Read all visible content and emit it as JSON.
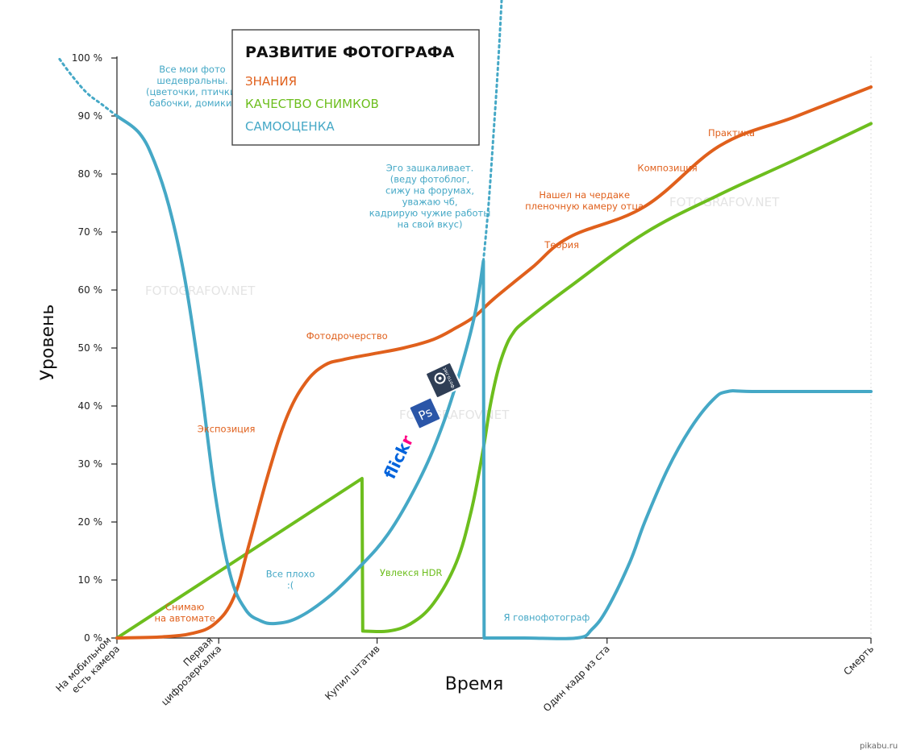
{
  "chart_data": {
    "type": "line",
    "title": "РАЗВИТИЕ ФОТОГРАФА",
    "xlabel": "Время",
    "ylabel": "Уровень",
    "ylim": [
      0,
      100
    ],
    "yticks": [
      "0 %",
      "10 %",
      "20 %",
      "30 %",
      "40 %",
      "50 %",
      "60 %",
      "70 %",
      "80 %",
      "90 %",
      "100 %"
    ],
    "xlim": [
      0,
      100
    ],
    "categories": [
      {
        "x": 0,
        "label": [
          "На мобильном",
          "есть камера"
        ]
      },
      {
        "x": 13.5,
        "label": [
          "Первая",
          "цифрозеркалка"
        ]
      },
      {
        "x": 34.5,
        "label": [
          "Купил штатив"
        ]
      },
      {
        "x": 65,
        "label": [
          "Один кадр из ста"
        ]
      },
      {
        "x": 100,
        "label": [
          "Смерть"
        ]
      }
    ],
    "grid": false,
    "legend": "top-left",
    "series": [
      {
        "name": "ЗНАНИЯ",
        "color": "#e0601c",
        "points": [
          [
            0,
            0
          ],
          [
            6,
            0.2
          ],
          [
            10,
            0.8
          ],
          [
            13,
            2.5
          ],
          [
            15.5,
            7
          ],
          [
            17.5,
            16
          ],
          [
            20,
            28
          ],
          [
            22.5,
            38
          ],
          [
            25,
            44
          ],
          [
            27.5,
            47
          ],
          [
            30,
            48
          ],
          [
            34,
            49
          ],
          [
            38,
            50
          ],
          [
            42,
            51.5
          ],
          [
            45,
            53.5
          ],
          [
            47.5,
            55.5
          ],
          [
            50,
            58.5
          ],
          [
            55,
            63.8
          ],
          [
            60,
            69.1
          ],
          [
            70,
            74.4
          ],
          [
            80,
            84.9
          ],
          [
            90,
            89.9
          ],
          [
            100,
            95
          ]
        ]
      },
      {
        "name": "КАЧЕСТВО СНИМКОВ",
        "color": "#6dbe1e",
        "points": [
          [
            0,
            0
          ],
          [
            32.5,
            27.5
          ],
          [
            32.6,
            1.2
          ],
          [
            36,
            1.2
          ],
          [
            39,
            2.5
          ],
          [
            42,
            6
          ],
          [
            45,
            13
          ],
          [
            47,
            22
          ],
          [
            48.5,
            32
          ],
          [
            49.5,
            40
          ],
          [
            50.5,
            46
          ],
          [
            51.5,
            50
          ],
          [
            52.5,
            52.5
          ],
          [
            54,
            54.5
          ],
          [
            60,
            60.5
          ],
          [
            70,
            69.8
          ],
          [
            80,
            76.5
          ],
          [
            90,
            82.5
          ],
          [
            100,
            88.7
          ]
        ]
      },
      {
        "name": "САМООЦЕНКА",
        "color": "#45a8c6",
        "points": [
          [
            0,
            90
          ],
          [
            3,
            87
          ],
          [
            5,
            82
          ],
          [
            7,
            74
          ],
          [
            9,
            62
          ],
          [
            11,
            45
          ],
          [
            13,
            25
          ],
          [
            15,
            11
          ],
          [
            17,
            5
          ],
          [
            19,
            3
          ],
          [
            21,
            2.5
          ],
          [
            24,
            3.5
          ],
          [
            28,
            7
          ],
          [
            32,
            12
          ],
          [
            36,
            18
          ],
          [
            40,
            27
          ],
          [
            43,
            36
          ],
          [
            45.5,
            46
          ],
          [
            47.5,
            56
          ],
          [
            48.6,
            65
          ],
          [
            48.7,
            0
          ],
          [
            54,
            0
          ],
          [
            61,
            0
          ],
          [
            63,
            1.5
          ],
          [
            65,
            5
          ],
          [
            68,
            13
          ],
          [
            70,
            20
          ],
          [
            73,
            29
          ],
          [
            76,
            36
          ],
          [
            79,
            41
          ],
          [
            81,
            42.5
          ],
          [
            85,
            42.5
          ],
          [
            100,
            42.5
          ]
        ]
      }
    ],
    "dotted_extensions": [
      {
        "series": "САМООЦЕНКА",
        "color": "#45a8c6",
        "points": [
          [
            -7.6,
            99.8
          ],
          [
            -6,
            97
          ],
          [
            -4,
            94
          ],
          [
            -2,
            92
          ],
          [
            0,
            90
          ]
        ]
      },
      {
        "series": "САМООЦЕНКА",
        "color": "#45a8c6",
        "points": [
          [
            48.6,
            65
          ],
          [
            49.3,
            75
          ],
          [
            50,
            88
          ],
          [
            50.6,
            100
          ],
          [
            51.1,
            112
          ]
        ]
      }
    ],
    "annotations": [
      {
        "text": [
          "Все мои фото",
          "шедевральны.",
          "(цветочки, птички,",
          "бабочки, домики)"
        ],
        "color": "#45a8c6",
        "x": 10,
        "y": 97.5
      },
      {
        "text": [
          "Эго зашкаливает.",
          "(веду фотоблог,",
          "сижу на форумах,",
          "уважаю чб,",
          "кадрирую чужие работы",
          "на свой вкус)"
        ],
        "color": "#45a8c6",
        "x": 41.5,
        "y": 80.5
      },
      {
        "text": [
          "Все плохо",
          ":("
        ],
        "color": "#45a8c6",
        "x": 23,
        "y": 10.5
      },
      {
        "text": [
          "Я говнофотограф"
        ],
        "color": "#45a8c6",
        "x": 57,
        "y": 3
      },
      {
        "text": [
          "Снимаю",
          "на автомате"
        ],
        "color": "#e0601c",
        "x": 9,
        "y": 4.8
      },
      {
        "text": [
          "Экспозиция"
        ],
        "color": "#e0601c",
        "x": 14.5,
        "y": 35.5
      },
      {
        "text": [
          "Фотодрочерство"
        ],
        "color": "#e0601c",
        "x": 30.5,
        "y": 51.5
      },
      {
        "text": [
          "Теория"
        ],
        "color": "#e0601c",
        "x": 59,
        "y": 67.2
      },
      {
        "text": [
          "Нашел на чердаке",
          "пленочную камеру отца"
        ],
        "color": "#e0601c",
        "x": 62,
        "y": 75.8
      },
      {
        "text": [
          "Композиция"
        ],
        "color": "#e0601c",
        "x": 73,
        "y": 80.5
      },
      {
        "text": [
          "Практика"
        ],
        "color": "#e0601c",
        "x": 81.5,
        "y": 86.5
      },
      {
        "text": [
          "Увлекся HDR"
        ],
        "color": "#6dbe1e",
        "x": 39,
        "y": 10.7
      }
    ],
    "watermarks": [
      "FOTOGRAFOV.NET",
      "FOTOGRAFOV.NET",
      "FOTOGRAFOV.NET"
    ],
    "logos": [
      {
        "name": "flickr",
        "text": "flickr"
      },
      {
        "name": "photoshop",
        "text": "Ps"
      },
      {
        "name": "fotonet",
        "text": "Фото.net"
      }
    ],
    "credit": "pikabu.ru"
  }
}
